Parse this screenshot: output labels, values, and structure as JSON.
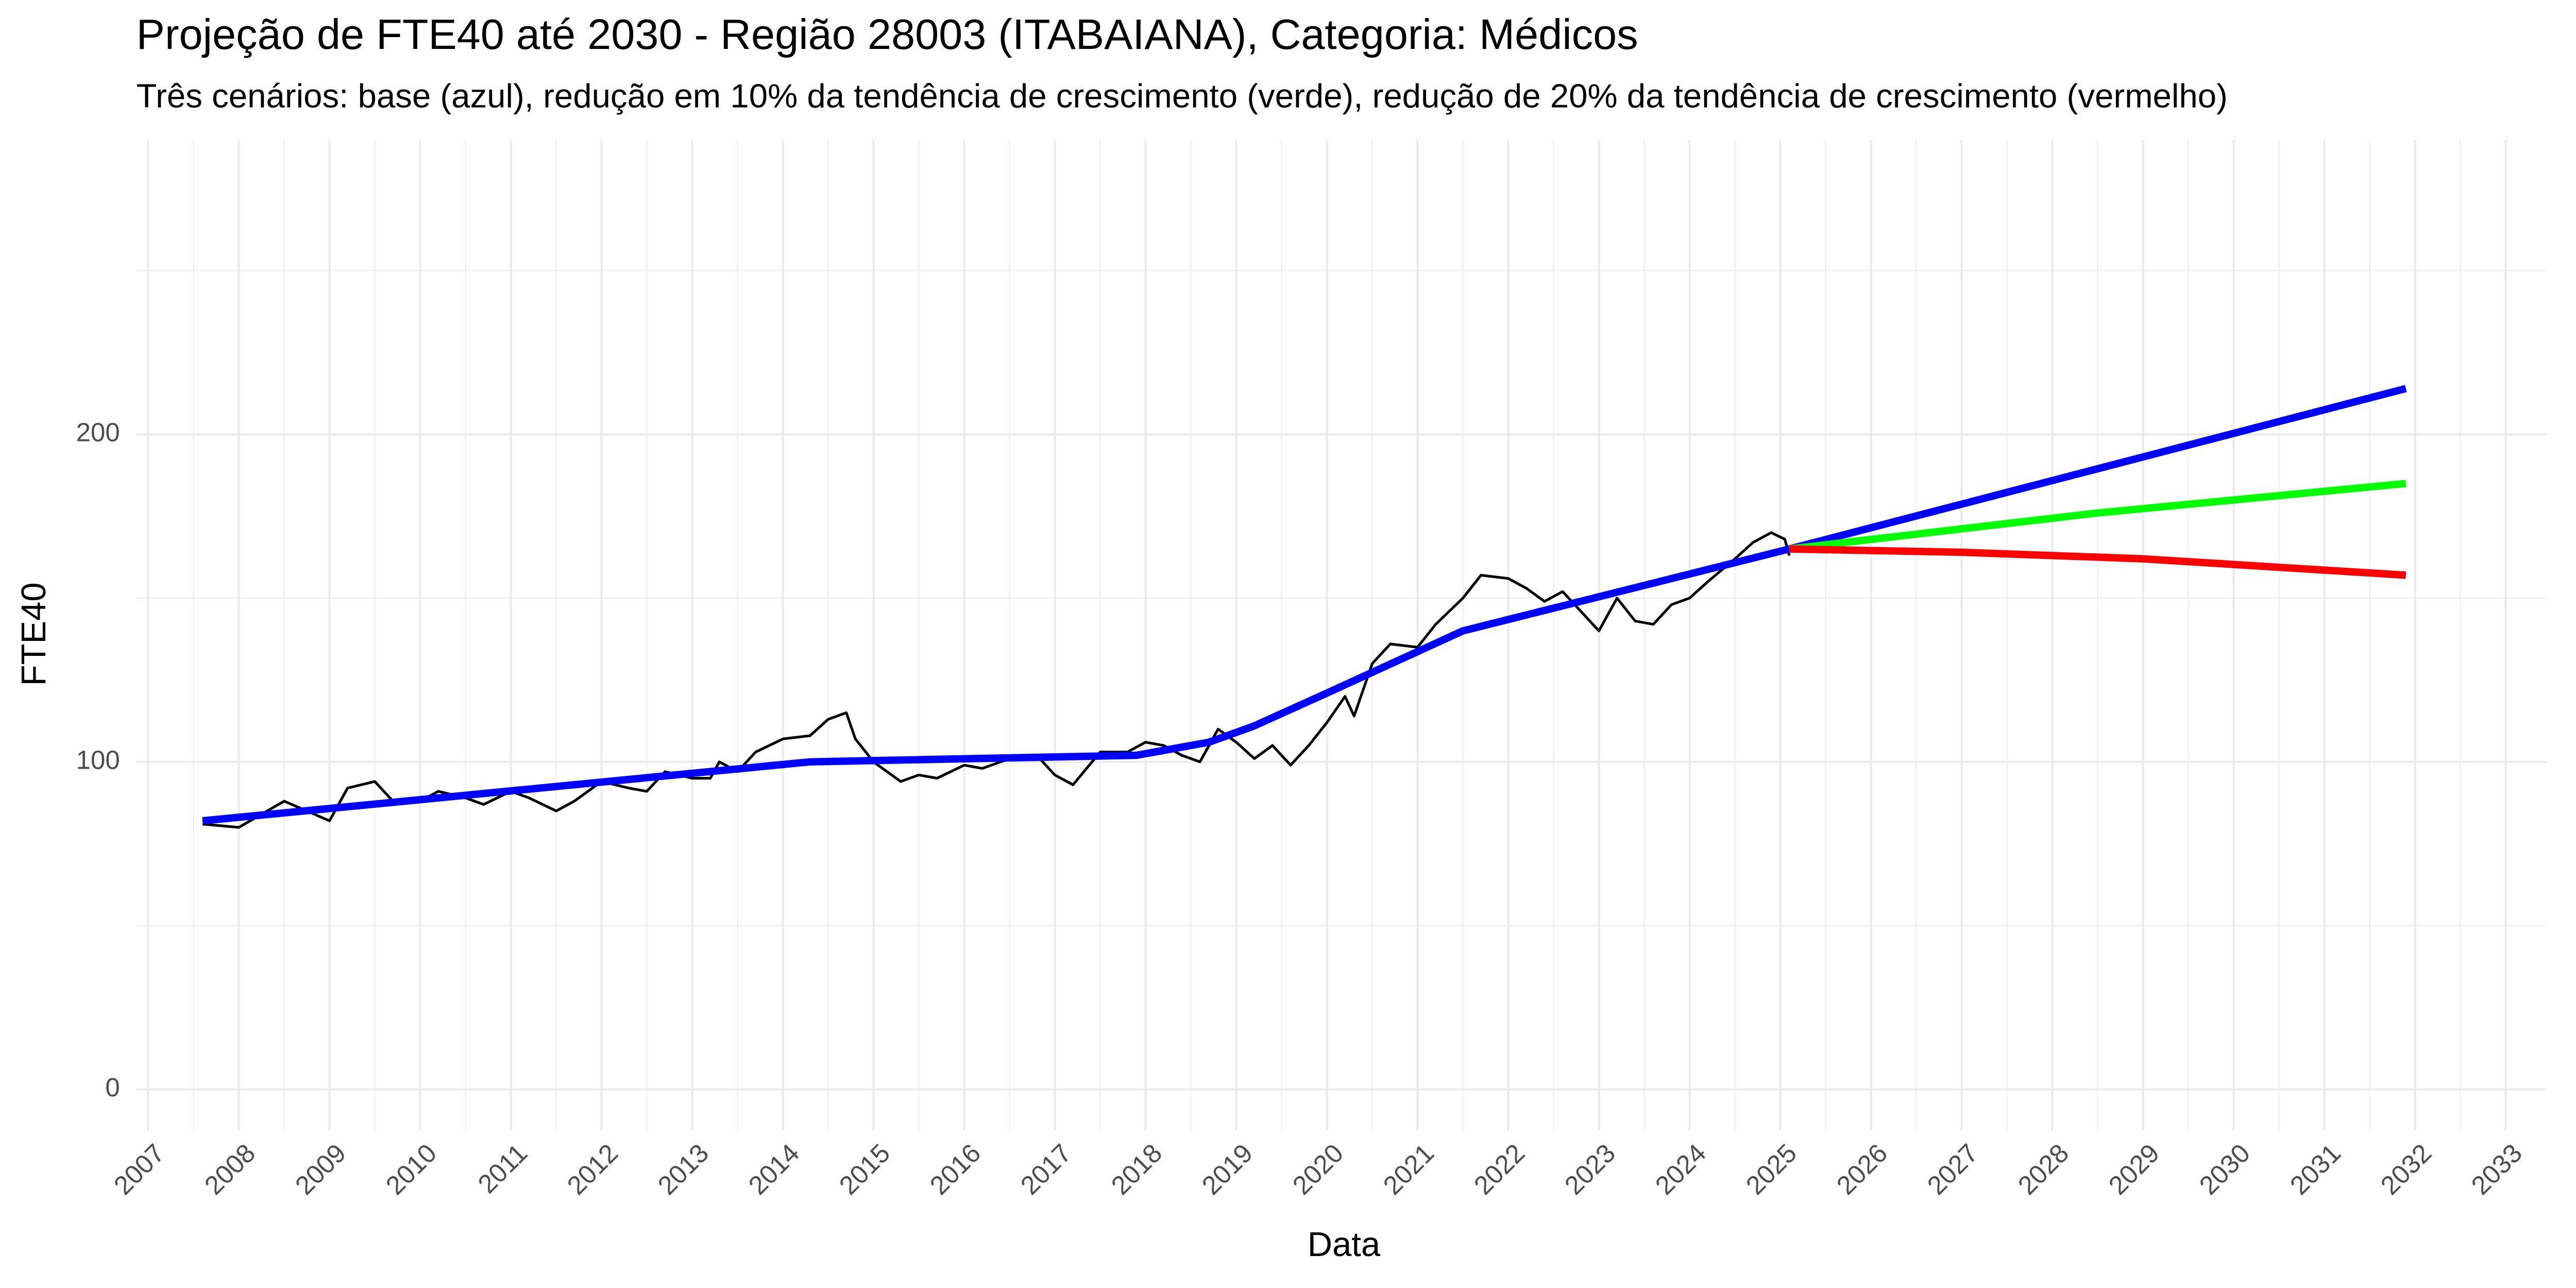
{
  "chart_data": {
    "type": "line",
    "title": "Projeção de FTE40 até 2030 - Região 28003 (ITABAIANA), Categoria: Médicos",
    "subtitle": "Três cenários: base (azul), redução em 10% da tendência de crescimento (verde), redução de 20% da tendência de crescimento (vermelho)",
    "xlabel": "Data",
    "ylabel": "FTE40",
    "xlim": [
      2006.87,
      2033.45
    ],
    "xticks": [
      2007,
      2008,
      2009,
      2010,
      2011,
      2012,
      2013,
      2014,
      2015,
      2016,
      2017,
      2018,
      2019,
      2020,
      2021,
      2022,
      2023,
      2024,
      2025,
      2026,
      2027,
      2028,
      2029,
      2030,
      2031,
      2032,
      2033
    ],
    "ylim": [
      -12.5,
      290
    ],
    "yticks": [
      0,
      100,
      200
    ],
    "grid": true,
    "minor_grid": true,
    "series": [
      {
        "color": "#000000",
        "width": 1.6,
        "x": [
          2007.6,
          2008.0,
          2008.5,
          2009.0,
          2009.2,
          2009.5,
          2009.7,
          2010.0,
          2010.2,
          2010.5,
          2010.7,
          2011.0,
          2011.2,
          2011.5,
          2011.7,
          2012.0,
          2012.3,
          2012.5,
          2012.7,
          2013.0,
          2013.2,
          2013.3,
          2013.5,
          2013.7,
          2014.0,
          2014.3,
          2014.5,
          2014.7,
          2014.8,
          2015.0,
          2015.3,
          2015.5,
          2015.7,
          2016.0,
          2016.2,
          2016.5,
          2016.8,
          2017.0,
          2017.2,
          2017.5,
          2017.8,
          2018.0,
          2018.2,
          2018.4,
          2018.6,
          2018.8,
          2019.0,
          2019.2,
          2019.4,
          2019.6,
          2019.8,
          2020.0,
          2020.2,
          2020.3,
          2020.5,
          2020.7,
          2021.0,
          2021.2,
          2021.5,
          2021.7,
          2022.0,
          2022.2,
          2022.4,
          2022.6,
          2022.8,
          2023.0,
          2023.2,
          2023.4,
          2023.6,
          2023.8,
          2024.0,
          2024.2,
          2024.5,
          2024.7,
          2024.9,
          2025.05,
          2025.1
        ],
        "values": [
          81,
          80,
          88,
          82,
          92,
          94,
          88,
          88,
          91,
          89,
          87,
          91,
          89,
          85,
          88,
          94,
          92,
          91,
          97,
          95,
          95,
          100,
          97,
          103,
          107,
          108,
          113,
          115,
          107,
          100,
          94,
          96,
          95,
          99,
          98,
          101,
          102,
          96,
          93,
          103,
          103,
          106,
          105,
          102,
          100,
          110,
          106,
          101,
          105,
          99,
          105,
          112,
          120,
          114,
          130,
          136,
          135,
          142,
          150,
          157,
          156,
          153,
          149,
          152,
          146,
          140,
          150,
          143,
          142,
          148,
          150,
          155,
          162,
          167,
          170,
          168,
          163
        ]
      },
      {
        "color": "#0000ff",
        "width": 4.5,
        "x": [
          2007.6,
          2014.3,
          2017.9,
          2018.7,
          2019.2,
          2020.0,
          2021.5,
          2025.1,
          2031.9
        ],
        "values": [
          82,
          100,
          102,
          106,
          111,
          121,
          140,
          165,
          214
        ]
      },
      {
        "color": "#00ff00",
        "width": 4.5,
        "x": [
          2025.1,
          2028.5,
          2031.9
        ],
        "values": [
          165,
          176,
          185
        ]
      },
      {
        "color": "#ff0000",
        "width": 4.5,
        "x": [
          2025.1,
          2027.0,
          2029.0,
          2031.9
        ],
        "values": [
          165,
          164,
          162,
          157
        ]
      }
    ]
  }
}
